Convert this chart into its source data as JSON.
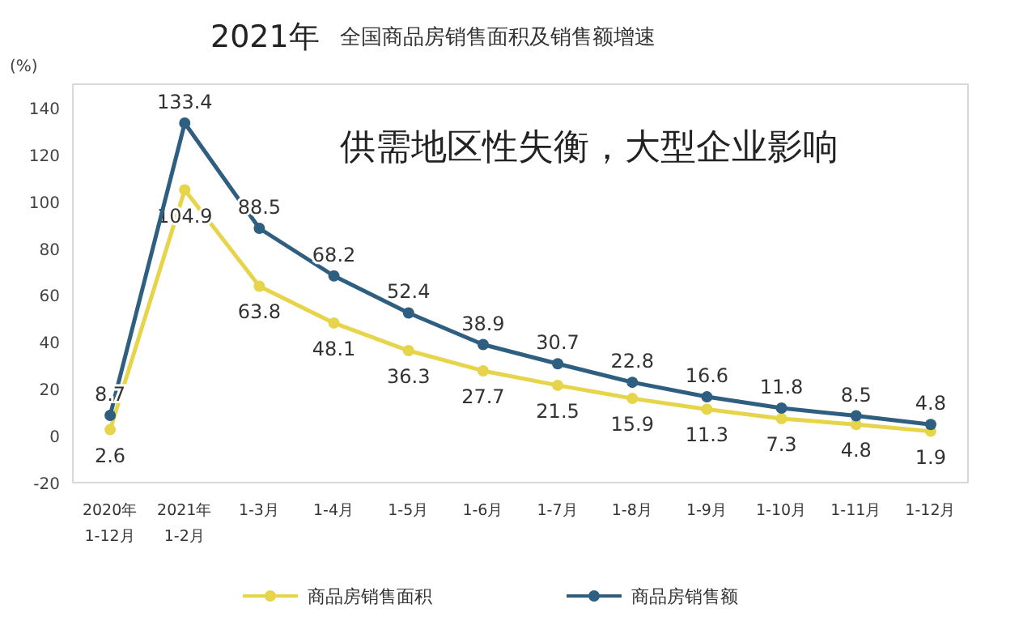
{
  "chart_data": {
    "type": "line",
    "title": "2021年",
    "subtitle": "全国商品房销售面积及销售额增速",
    "ylabel": "(%)",
    "categories": [
      "2020年\n1-12月",
      "2021年\n1-2月",
      "1-3月",
      "1-4月",
      "1-5月",
      "1-6月",
      "1-7月",
      "1-8月",
      "1-9月",
      "1-10月",
      "1-11月",
      "1-12月"
    ],
    "series": [
      {
        "name": "商品房销售面积",
        "color": "#e6d44a",
        "values": [
          2.6,
          104.9,
          63.8,
          48.1,
          36.3,
          27.7,
          21.5,
          15.9,
          11.3,
          7.3,
          4.8,
          1.9
        ]
      },
      {
        "name": "商品房销售额",
        "color": "#2f5f80",
        "values": [
          8.7,
          133.4,
          88.5,
          68.2,
          52.4,
          38.9,
          30.7,
          22.8,
          16.6,
          11.8,
          8.5,
          4.8
        ]
      }
    ],
    "ylim": [
      -20,
      150
    ],
    "yticks": [
      -20,
      0,
      20,
      40,
      60,
      80,
      100,
      120,
      140
    ],
    "data_labels": true,
    "marker": "circle",
    "line_style": "solid",
    "legend": "bottom",
    "grid": false,
    "annotations": [
      "供需地区性失衡，大型企业影响"
    ]
  }
}
